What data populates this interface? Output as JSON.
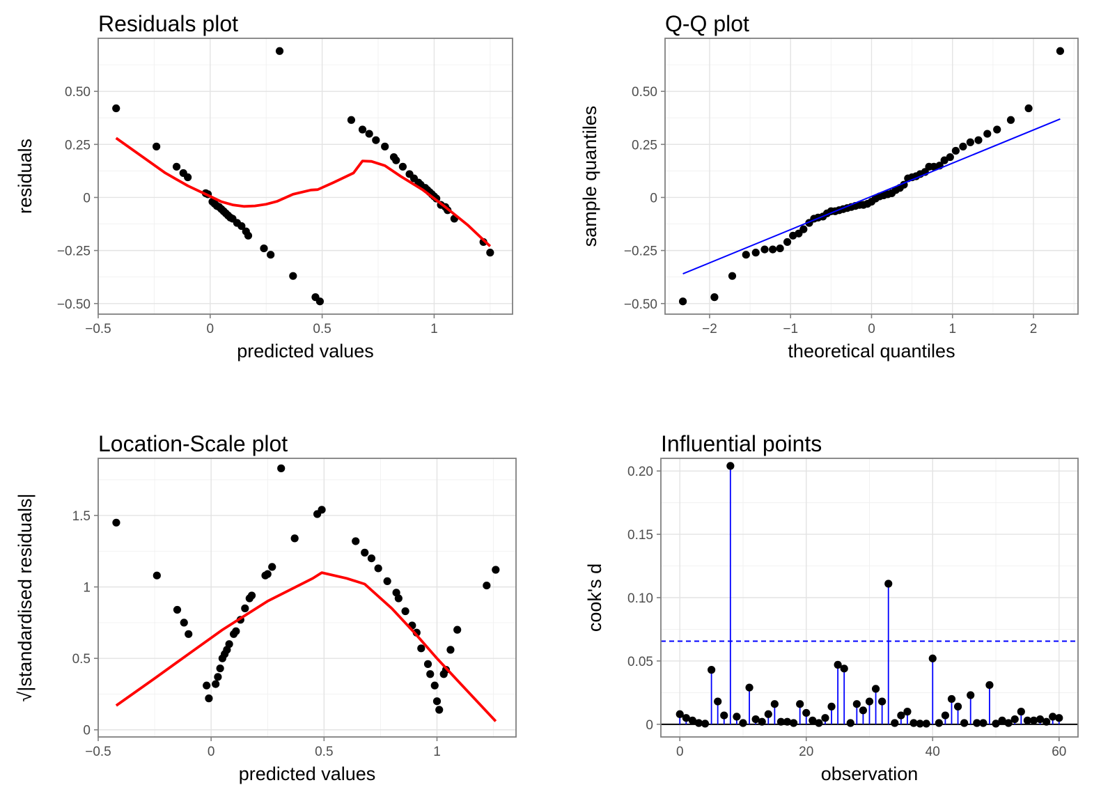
{
  "chart_data": [
    {
      "type": "scatter",
      "title": "Residuals plot",
      "xlabel": "predicted values",
      "ylabel": "residuals",
      "xlim": [
        -0.5,
        1.35
      ],
      "ylim": [
        -0.55,
        0.75
      ],
      "x_ticks": [
        -0.5,
        0,
        0.5,
        1
      ],
      "x_tick_labels": [
        "−0.5",
        "0",
        "0.5",
        "1"
      ],
      "y_ticks": [
        -0.5,
        -0.25,
        0,
        0.25,
        0.5
      ],
      "y_tick_labels": [
        "−0.50",
        "−0.25",
        "0",
        "0.25",
        "0.50"
      ],
      "points": {
        "x": [
          -0.42,
          -0.24,
          -0.15,
          -0.12,
          -0.1,
          -0.02,
          -0.01,
          0.01,
          0.02,
          0.03,
          0.04,
          0.05,
          0.06,
          0.07,
          0.08,
          0.09,
          0.1,
          0.12,
          0.14,
          0.16,
          0.17,
          0.24,
          0.27,
          0.31,
          0.37,
          0.47,
          0.49,
          0.63,
          0.68,
          0.71,
          0.74,
          0.78,
          0.82,
          0.83,
          0.86,
          0.89,
          0.91,
          0.93,
          0.94,
          0.96,
          0.97,
          0.98,
          0.99,
          1.0,
          1.01,
          1.03,
          1.05,
          1.06,
          1.09,
          1.22,
          1.25
        ],
        "y": [
          0.42,
          0.24,
          0.145,
          0.115,
          0.095,
          0.02,
          0.015,
          -0.02,
          -0.03,
          -0.04,
          -0.045,
          -0.055,
          -0.065,
          -0.075,
          -0.085,
          -0.095,
          -0.1,
          -0.12,
          -0.135,
          -0.16,
          -0.18,
          -0.24,
          -0.27,
          0.69,
          -0.37,
          -0.47,
          -0.49,
          0.365,
          0.32,
          0.3,
          0.27,
          0.24,
          0.19,
          0.175,
          0.145,
          0.11,
          0.09,
          0.07,
          0.06,
          0.045,
          0.035,
          0.025,
          0.015,
          0.005,
          -0.005,
          -0.035,
          -0.045,
          -0.06,
          -0.1,
          -0.21,
          -0.26
        ]
      },
      "smooth_line": {
        "x": [
          -0.42,
          -0.3,
          -0.2,
          -0.1,
          0.0,
          0.05,
          0.1,
          0.15,
          0.2,
          0.25,
          0.3,
          0.37,
          0.45,
          0.48,
          0.55,
          0.64,
          0.68,
          0.72,
          0.78,
          0.85,
          0.95,
          1.05,
          1.15,
          1.25
        ],
        "y": [
          0.28,
          0.19,
          0.115,
          0.055,
          0.005,
          -0.02,
          -0.035,
          -0.042,
          -0.04,
          -0.032,
          -0.018,
          0.015,
          0.035,
          0.037,
          0.07,
          0.115,
          0.172,
          0.17,
          0.15,
          0.1,
          0.035,
          -0.045,
          -0.13,
          -0.23
        ]
      },
      "colors": {
        "points": "#000000",
        "line": "#ff0000"
      }
    },
    {
      "type": "scatter",
      "title": "Q-Q plot",
      "xlabel": "theoretical quantiles",
      "ylabel": "sample quantiles",
      "xlim": [
        -2.55,
        2.55
      ],
      "ylim": [
        -0.55,
        0.75
      ],
      "x_ticks": [
        -2,
        -1,
        0,
        1,
        2
      ],
      "x_tick_labels": [
        "−2",
        "−1",
        "0",
        "1",
        "2"
      ],
      "y_ticks": [
        -0.5,
        -0.25,
        0,
        0.25,
        0.5
      ],
      "y_tick_labels": [
        "−0.50",
        "−0.25",
        "0",
        "0.25",
        "0.50"
      ],
      "points": {
        "x": [
          -2.33,
          -1.94,
          -1.72,
          -1.55,
          -1.43,
          -1.32,
          -1.22,
          -1.13,
          -1.04,
          -0.97,
          -0.9,
          -0.84,
          -0.77,
          -0.71,
          -0.66,
          -0.6,
          -0.55,
          -0.5,
          -0.45,
          -0.4,
          -0.35,
          -0.3,
          -0.25,
          -0.2,
          -0.15,
          -0.1,
          -0.05,
          0.0,
          0.05,
          0.1,
          0.15,
          0.2,
          0.25,
          0.3,
          0.35,
          0.4,
          0.45,
          0.5,
          0.55,
          0.6,
          0.66,
          0.71,
          0.77,
          0.84,
          0.9,
          0.97,
          1.04,
          1.13,
          1.22,
          1.32,
          1.43,
          1.55,
          1.72,
          1.94,
          2.33
        ],
        "y": [
          -0.49,
          -0.47,
          -0.37,
          -0.27,
          -0.26,
          -0.245,
          -0.245,
          -0.24,
          -0.21,
          -0.18,
          -0.17,
          -0.15,
          -0.12,
          -0.1,
          -0.095,
          -0.09,
          -0.075,
          -0.065,
          -0.065,
          -0.06,
          -0.055,
          -0.05,
          -0.045,
          -0.04,
          -0.035,
          -0.035,
          -0.03,
          -0.02,
          -0.005,
          0.005,
          0.01,
          0.015,
          0.02,
          0.035,
          0.045,
          0.06,
          0.09,
          0.095,
          0.1,
          0.11,
          0.12,
          0.145,
          0.145,
          0.15,
          0.175,
          0.19,
          0.22,
          0.24,
          0.26,
          0.27,
          0.3,
          0.32,
          0.365,
          0.42,
          0.69
        ]
      },
      "reference_line": {
        "x": [
          -2.33,
          2.33
        ],
        "y": [
          -0.36,
          0.37
        ]
      },
      "colors": {
        "points": "#000000",
        "line": "#0000ff"
      }
    },
    {
      "type": "scatter",
      "title": "Location-Scale plot",
      "xlabel": "predicted values",
      "ylabel": "√|standardised residuals|",
      "xlim": [
        -0.5,
        1.35
      ],
      "ylim": [
        -0.05,
        1.9
      ],
      "x_ticks": [
        -0.5,
        0,
        0.5,
        1
      ],
      "x_tick_labels": [
        "−0.5",
        "0",
        "0.5",
        "1"
      ],
      "y_ticks": [
        0,
        0.5,
        1,
        1.5
      ],
      "y_tick_labels": [
        "0",
        "0.5",
        "1",
        "1.5"
      ],
      "points": {
        "x": [
          -0.42,
          -0.24,
          -0.15,
          -0.12,
          -0.1,
          -0.02,
          -0.01,
          0.02,
          0.03,
          0.04,
          0.05,
          0.06,
          0.07,
          0.08,
          0.1,
          0.11,
          0.13,
          0.15,
          0.17,
          0.18,
          0.24,
          0.25,
          0.27,
          0.31,
          0.37,
          0.47,
          0.49,
          0.64,
          0.68,
          0.71,
          0.74,
          0.78,
          0.82,
          0.83,
          0.86,
          0.89,
          0.91,
          0.93,
          0.96,
          0.97,
          0.99,
          1.0,
          1.01,
          1.03,
          1.04,
          1.06,
          1.09,
          1.22,
          1.26
        ],
        "y": [
          1.45,
          1.08,
          0.84,
          0.75,
          0.67,
          0.31,
          0.22,
          0.32,
          0.37,
          0.43,
          0.5,
          0.53,
          0.56,
          0.6,
          0.67,
          0.69,
          0.77,
          0.85,
          0.92,
          0.94,
          1.08,
          1.09,
          1.14,
          1.83,
          1.34,
          1.51,
          1.54,
          1.32,
          1.24,
          1.2,
          1.13,
          1.04,
          0.96,
          0.92,
          0.83,
          0.73,
          0.68,
          0.57,
          0.46,
          0.39,
          0.31,
          0.2,
          0.14,
          0.39,
          0.42,
          0.56,
          0.7,
          1.01,
          1.12
        ]
      },
      "smooth_line": {
        "x": [
          -0.42,
          -0.25,
          -0.1,
          0.05,
          0.15,
          0.25,
          0.35,
          0.45,
          0.49,
          0.6,
          0.68,
          0.8,
          0.9,
          1.0,
          1.1,
          1.26
        ],
        "y": [
          0.17,
          0.36,
          0.53,
          0.7,
          0.8,
          0.9,
          0.98,
          1.06,
          1.1,
          1.06,
          1.02,
          0.85,
          0.68,
          0.5,
          0.33,
          0.06
        ]
      },
      "colors": {
        "points": "#000000",
        "line": "#ff0000"
      }
    },
    {
      "type": "scatter",
      "subtype": "stem",
      "title": "Influential points",
      "xlabel": "observation",
      "ylabel": "cook's d",
      "xlim": [
        -3,
        63
      ],
      "ylim": [
        -0.01,
        0.21
      ],
      "x_ticks": [
        0,
        20,
        40,
        60
      ],
      "x_tick_labels": [
        "0",
        "20",
        "40",
        "60"
      ],
      "y_ticks": [
        0,
        0.05,
        0.1,
        0.15,
        0.2
      ],
      "y_tick_labels": [
        "0",
        "0.05",
        "0.10",
        "0.15",
        "0.20"
      ],
      "observation": [
        0,
        1,
        2,
        3,
        4,
        5,
        6,
        7,
        8,
        9,
        10,
        11,
        12,
        13,
        14,
        15,
        16,
        17,
        18,
        19,
        20,
        21,
        22,
        23,
        24,
        25,
        26,
        27,
        28,
        29,
        30,
        31,
        32,
        33,
        34,
        35,
        36,
        37,
        38,
        39,
        40,
        41,
        42,
        43,
        44,
        45,
        46,
        47,
        48,
        49,
        50,
        51,
        52,
        53,
        54,
        55,
        56,
        57,
        58,
        59,
        60
      ],
      "cooks_d": [
        0.008,
        0.005,
        0.003,
        0.001,
        0.0005,
        0.043,
        0.018,
        0.007,
        0.204,
        0.006,
        0.001,
        0.029,
        0.004,
        0.002,
        0.008,
        0.016,
        0.002,
        0.002,
        0.001,
        0.016,
        0.009,
        0.003,
        0.001,
        0.005,
        0.014,
        0.047,
        0.044,
        0.001,
        0.016,
        0.011,
        0.018,
        0.028,
        0.018,
        0.111,
        0.001,
        0.007,
        0.01,
        0.001,
        0.0005,
        0.0005,
        0.052,
        0.001,
        0.007,
        0.02,
        0.014,
        0.001,
        0.023,
        0.001,
        0.001,
        0.031,
        0.0005,
        0.003,
        0.001,
        0.004,
        0.01,
        0.003,
        0.003,
        0.004,
        0.002,
        0.006,
        0.005
      ],
      "threshold": 0.0656,
      "colors": {
        "points": "#000000",
        "stems": "#0000ff",
        "threshold": "#0000ff",
        "baseline": "#000000"
      }
    }
  ]
}
